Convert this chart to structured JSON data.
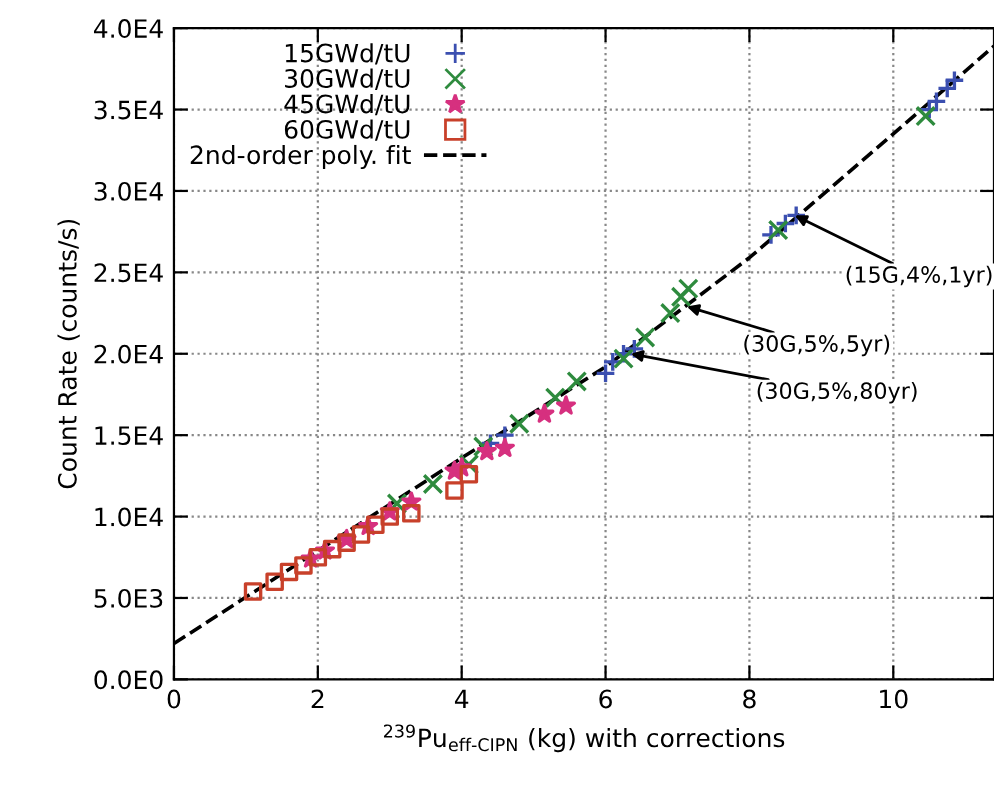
{
  "chart_data": {
    "type": "scatter",
    "xlabel": "$^{239}$Pu$_{eff‐CIPN}$ (kg) with corrections",
    "ylabel": "Count Rate (counts/s)",
    "xlim": [
      0,
      11.4
    ],
    "xticks": [
      0,
      2,
      4,
      6,
      8,
      10
    ],
    "ylim": [
      0,
      40000
    ],
    "yticks": [
      {
        "value": 0,
        "label": "0.0E0"
      },
      {
        "value": 5000,
        "label": "5.0E3"
      },
      {
        "value": 10000,
        "label": "1.0E4"
      },
      {
        "value": 15000,
        "label": "1.5E4"
      },
      {
        "value": 20000,
        "label": "2.0E4"
      },
      {
        "value": 25000,
        "label": "2.5E4"
      },
      {
        "value": 30000,
        "label": "3.0E4"
      },
      {
        "value": 35000,
        "label": "3.5E4"
      },
      {
        "value": 40000,
        "label": "4.0E4"
      }
    ],
    "grid": true,
    "legend": "top left",
    "series": [
      {
        "name": "15GWd/tU",
        "color": "#3b4fb0",
        "marker": "plus",
        "x": [
          10.5,
          10.6,
          10.75,
          10.85,
          8.3,
          8.5,
          8.65,
          6.0,
          6.1,
          6.25,
          6.4,
          4.4,
          4.6
        ],
        "values": [
          35000,
          35500,
          36300,
          36800,
          27300,
          28000,
          28500,
          18800,
          19500,
          20000,
          20300,
          14500,
          15000
        ]
      },
      {
        "name": "30GWd/tU",
        "color": "#2e8b3e",
        "marker": "cross",
        "x": [
          10.45,
          8.4,
          7.15,
          7.05,
          6.9,
          6.55,
          6.25,
          5.6,
          5.3,
          4.8,
          4.3,
          4.1,
          3.6,
          3.1
        ],
        "values": [
          34600,
          27600,
          24000,
          23500,
          22500,
          21000,
          19700,
          18300,
          17300,
          15700,
          14300,
          13200,
          12000,
          10800
        ]
      },
      {
        "name": "45GWd/tU",
        "color": "#d6307f",
        "marker": "star",
        "x": [
          5.45,
          5.15,
          4.6,
          4.35,
          4.0,
          3.9,
          3.3,
          3.0,
          2.7,
          2.4,
          2.1,
          1.9
        ],
        "values": [
          16800,
          16300,
          14200,
          14000,
          13000,
          12800,
          10900,
          10300,
          9400,
          8600,
          7900,
          7400
        ]
      },
      {
        "name": "60GWd/tU",
        "color": "#c8402a",
        "marker": "square",
        "x": [
          1.1,
          1.4,
          1.6,
          1.8,
          2.0,
          2.2,
          2.4,
          2.6,
          2.8,
          3.0,
          3.3,
          3.9,
          4.1
        ],
        "values": [
          5400,
          6000,
          6600,
          7000,
          7500,
          8000,
          8400,
          8900,
          9500,
          10000,
          10200,
          11600,
          12600
        ]
      },
      {
        "name": "2nd-order poly. fit",
        "type": "line",
        "color": "#000000",
        "line_style": "dashed",
        "marker": "none",
        "x": [
          0,
          2,
          4,
          6,
          8,
          10,
          11.4
        ],
        "values": [
          2200,
          7900,
          13600,
          19200,
          25900,
          33500,
          38900
        ]
      }
    ],
    "annotations": [
      {
        "text": "(15G,4%,1yr)",
        "x": 8.63,
        "y": 28500
      },
      {
        "text": "(30G,5%,5yr)",
        "x": 7.13,
        "y": 22900
      },
      {
        "text": "(30G,5%,80yr)",
        "x": 6.35,
        "y": 20000
      }
    ]
  }
}
